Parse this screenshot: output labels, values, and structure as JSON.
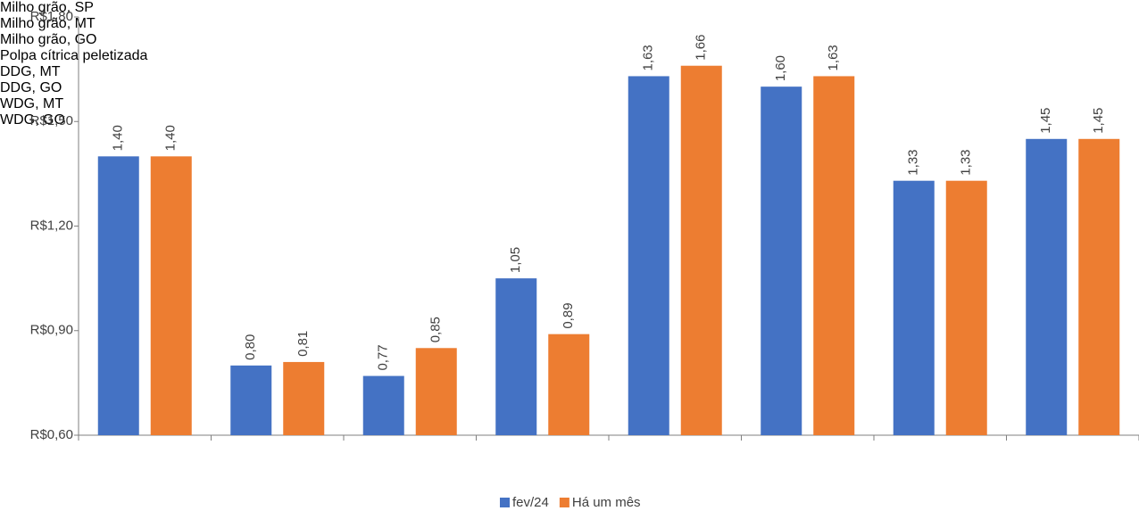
{
  "chart_data": {
    "type": "bar",
    "categories": [
      "Milho grão, SP",
      "Milho grão, MT",
      "Milho grão, GO",
      "Polpa cítrica peletizada",
      "DDG, MT",
      "DDG, GO",
      "WDG, MT",
      "WDG, GO"
    ],
    "series": [
      {
        "name": "fev/24",
        "color": "#4472c4",
        "values": [
          1.4,
          0.8,
          0.77,
          1.05,
          1.63,
          1.6,
          1.33,
          1.45
        ],
        "value_labels": [
          "1,40",
          "0,80",
          "0,77",
          "1,05",
          "1,63",
          "1,60",
          "1,33",
          "1,45"
        ]
      },
      {
        "name": "Há um mês",
        "color": "#ed7d31",
        "values": [
          1.4,
          0.81,
          0.85,
          0.89,
          1.66,
          1.63,
          1.33,
          1.45
        ],
        "value_labels": [
          "1,40",
          "0,81",
          "0,85",
          "0,89",
          "1,66",
          "1,63",
          "1,33",
          "1,45"
        ]
      }
    ],
    "ylim": [
      0.6,
      1.8
    ],
    "yticks": [
      {
        "value": 0.6,
        "label": "R$0,60"
      },
      {
        "value": 0.9,
        "label": "R$0,90"
      },
      {
        "value": 1.2,
        "label": "R$1,20"
      },
      {
        "value": 1.5,
        "label": "R$1,50"
      },
      {
        "value": 1.8,
        "label": "R$1,80"
      }
    ],
    "grid": false,
    "legend": "bottom"
  }
}
